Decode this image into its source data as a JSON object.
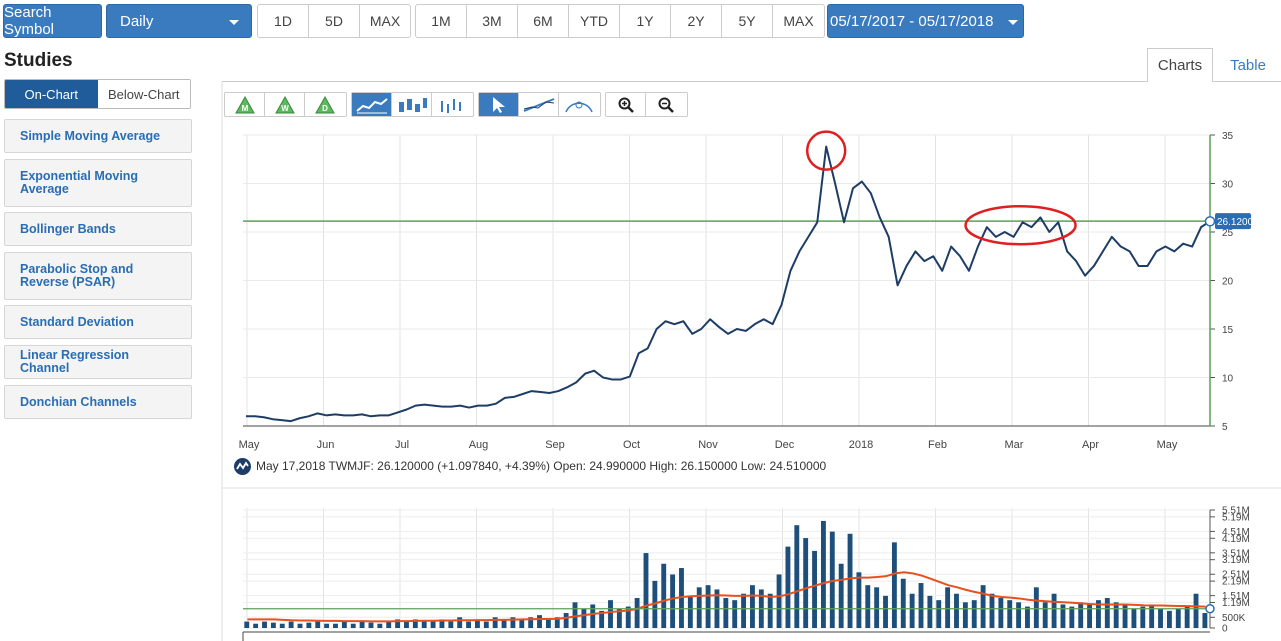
{
  "toolbar": {
    "search_label": "Search Symbol",
    "interval_label": "Daily",
    "range_group_1": [
      "1D",
      "5D",
      "MAX"
    ],
    "range_group_2": [
      "1M",
      "3M",
      "6M",
      "YTD",
      "1Y",
      "2Y",
      "5Y",
      "MAX"
    ],
    "date_range": "05/17/2017 - 05/17/2018"
  },
  "studies": {
    "title": "Studies",
    "on_chart": "On-Chart",
    "below_chart": "Below-Chart",
    "items": [
      {
        "label": "Simple Moving Average"
      },
      {
        "label": "Exponential Moving Average"
      },
      {
        "label": "Bollinger Bands"
      },
      {
        "label": "Parabolic Stop and Reverse (PSAR)"
      },
      {
        "label": "Standard Deviation"
      },
      {
        "label": "Linear Regression Channel"
      },
      {
        "label": "Donchian Channels"
      }
    ]
  },
  "tabs": {
    "charts": "Charts",
    "table": "Table"
  },
  "chart_tools": {
    "period_icons": [
      "M",
      "W",
      "D"
    ],
    "accent": "#3a7bbf"
  },
  "info": {
    "text": "May 17,2018 TWMJF: 26.120000 (+1.097840, +4.39%) Open: 24.990000 High: 26.150000 Low: 24.510000"
  },
  "chart_data": [
    {
      "type": "line",
      "symbol": "TWMJF",
      "x_ticks": [
        "May",
        "Jun",
        "Jul",
        "Aug",
        "Sep",
        "Oct",
        "Nov",
        "Dec",
        "2018",
        "Feb",
        "Mar",
        "Apr",
        "May"
      ],
      "y_ticks": [
        5,
        10,
        15,
        20,
        25,
        30,
        35
      ],
      "ylim": [
        5,
        35
      ],
      "last_value_label": "26.1200",
      "last_value": 26.12,
      "reference_line": 26.12,
      "colors": {
        "line": "#1e3d66",
        "reference": "#5aa05a",
        "annotation": "#e02020"
      },
      "series": [
        {
          "values": [
            6.0,
            6.0,
            5.9,
            5.7,
            5.6,
            5.5,
            5.8,
            6.0,
            6.3,
            6.1,
            6.2,
            6.1,
            6.1,
            6.2,
            6.0,
            6.1,
            6.1,
            6.4,
            6.7,
            7.1,
            7.2,
            7.1,
            7.0,
            7.0,
            7.1,
            6.9,
            7.1,
            7.1,
            7.3,
            7.9,
            8.0,
            8.3,
            8.6,
            8.5,
            8.4,
            8.6,
            9.0,
            9.5,
            10.4,
            10.7,
            10.0,
            9.8,
            9.8,
            10.1,
            12.5,
            13.0,
            15.0,
            15.8,
            15.5,
            15.8,
            14.5,
            15.0,
            16.0,
            15.2,
            14.5,
            15.0,
            14.8,
            15.5,
            16.0,
            15.5,
            17.5,
            21.0,
            23.0,
            24.5,
            26.0,
            33.8,
            30.0,
            26.0,
            29.5,
            30.2,
            29.0,
            26.5,
            24.5,
            19.5,
            21.5,
            23.0,
            22.0,
            22.5,
            21.0,
            23.5,
            22.5,
            21.0,
            23.5,
            25.5,
            24.5,
            25.0,
            24.5,
            26.0,
            25.5,
            26.5,
            25.0,
            26.0,
            23.0,
            22.0,
            20.5,
            21.5,
            23.0,
            24.5,
            23.5,
            23.0,
            21.5,
            21.5,
            23.0,
            23.5,
            23.0,
            23.8,
            23.5,
            25.5,
            26.1
          ]
        }
      ],
      "annotations": [
        {
          "type": "circle",
          "label": "peak"
        },
        {
          "type": "ellipse",
          "label": "consolidation"
        }
      ]
    },
    {
      "type": "bar",
      "y_ticks": [
        "0",
        "500K",
        "1.19M",
        "1.51M",
        "2.19M",
        "2.51M",
        "3.19M",
        "3.51M",
        "4.19M",
        "4.51M",
        "5.19M",
        "5.51M"
      ],
      "ylim": [
        0,
        5.51
      ],
      "colors": {
        "bar": "#1e4f7a",
        "average": "#e8501e",
        "reference": "#5aa05a"
      },
      "series": [
        {
          "name": "",
          "values": [
            0.3,
            0.2,
            0.3,
            0.25,
            0.2,
            0.3,
            0.2,
            0.25,
            0.3,
            0.2,
            0.2,
            0.3,
            0.2,
            0.3,
            0.25,
            0.2,
            0.3,
            0.4,
            0.3,
            0.4,
            0.35,
            0.3,
            0.4,
            0.3,
            0.5,
            0.3,
            0.4,
            0.3,
            0.5,
            0.4,
            0.5,
            0.4,
            0.5,
            0.6,
            0.4,
            0.5,
            0.7,
            1.2,
            0.9,
            1.1,
            0.8,
            1.3,
            0.9,
            1.0,
            1.4,
            3.5,
            2.2,
            3.0,
            2.5,
            2.8,
            1.5,
            1.9,
            2.0,
            1.8,
            1.4,
            1.3,
            1.6,
            2.0,
            1.8,
            1.6,
            2.5,
            3.8,
            4.8,
            4.2,
            3.6,
            5.0,
            4.5,
            3.0,
            4.4,
            2.6,
            2.0,
            1.9,
            1.5,
            4.0,
            2.3,
            1.6,
            2.1,
            1.5,
            1.3,
            1.9,
            1.6,
            1.2,
            1.3,
            2.0,
            1.6,
            1.4,
            1.3,
            1.2,
            1.0,
            1.9,
            1.2,
            1.6,
            1.1,
            1.0,
            1.2,
            1.1,
            1.3,
            1.4,
            1.2,
            1.1,
            0.9,
            1.0,
            1.1,
            0.9,
            0.8,
            0.9,
            1.0,
            1.6,
            0.7
          ]
        },
        {
          "name": "",
          "values": [
            0.4,
            0.4,
            0.4,
            0.4,
            0.38,
            0.36,
            0.35,
            0.35,
            0.34,
            0.33,
            0.33,
            0.32,
            0.32,
            0.32,
            0.31,
            0.31,
            0.31,
            0.32,
            0.32,
            0.33,
            0.34,
            0.34,
            0.35,
            0.35,
            0.36,
            0.36,
            0.37,
            0.37,
            0.38,
            0.38,
            0.39,
            0.4,
            0.41,
            0.42,
            0.42,
            0.43,
            0.48,
            0.55,
            0.6,
            0.66,
            0.7,
            0.75,
            0.78,
            0.82,
            0.9,
            1.05,
            1.15,
            1.28,
            1.38,
            1.45,
            1.48,
            1.5,
            1.52,
            1.53,
            1.52,
            1.5,
            1.5,
            1.52,
            1.5,
            1.45,
            1.48,
            1.58,
            1.72,
            1.86,
            1.98,
            2.1,
            2.2,
            2.25,
            2.32,
            2.35,
            2.35,
            2.38,
            2.42,
            2.55,
            2.6,
            2.55,
            2.45,
            2.3,
            2.15,
            2.0,
            1.9,
            1.78,
            1.68,
            1.6,
            1.5,
            1.45,
            1.42,
            1.38,
            1.32,
            1.28,
            1.25,
            1.22,
            1.2,
            1.18,
            1.15,
            1.12,
            1.1,
            1.1,
            1.1,
            1.1,
            1.08,
            1.06,
            1.05,
            1.05,
            1.04,
            1.03,
            1.02,
            1.01,
            1.0
          ]
        }
      ],
      "reference_line": 0.9
    }
  ]
}
